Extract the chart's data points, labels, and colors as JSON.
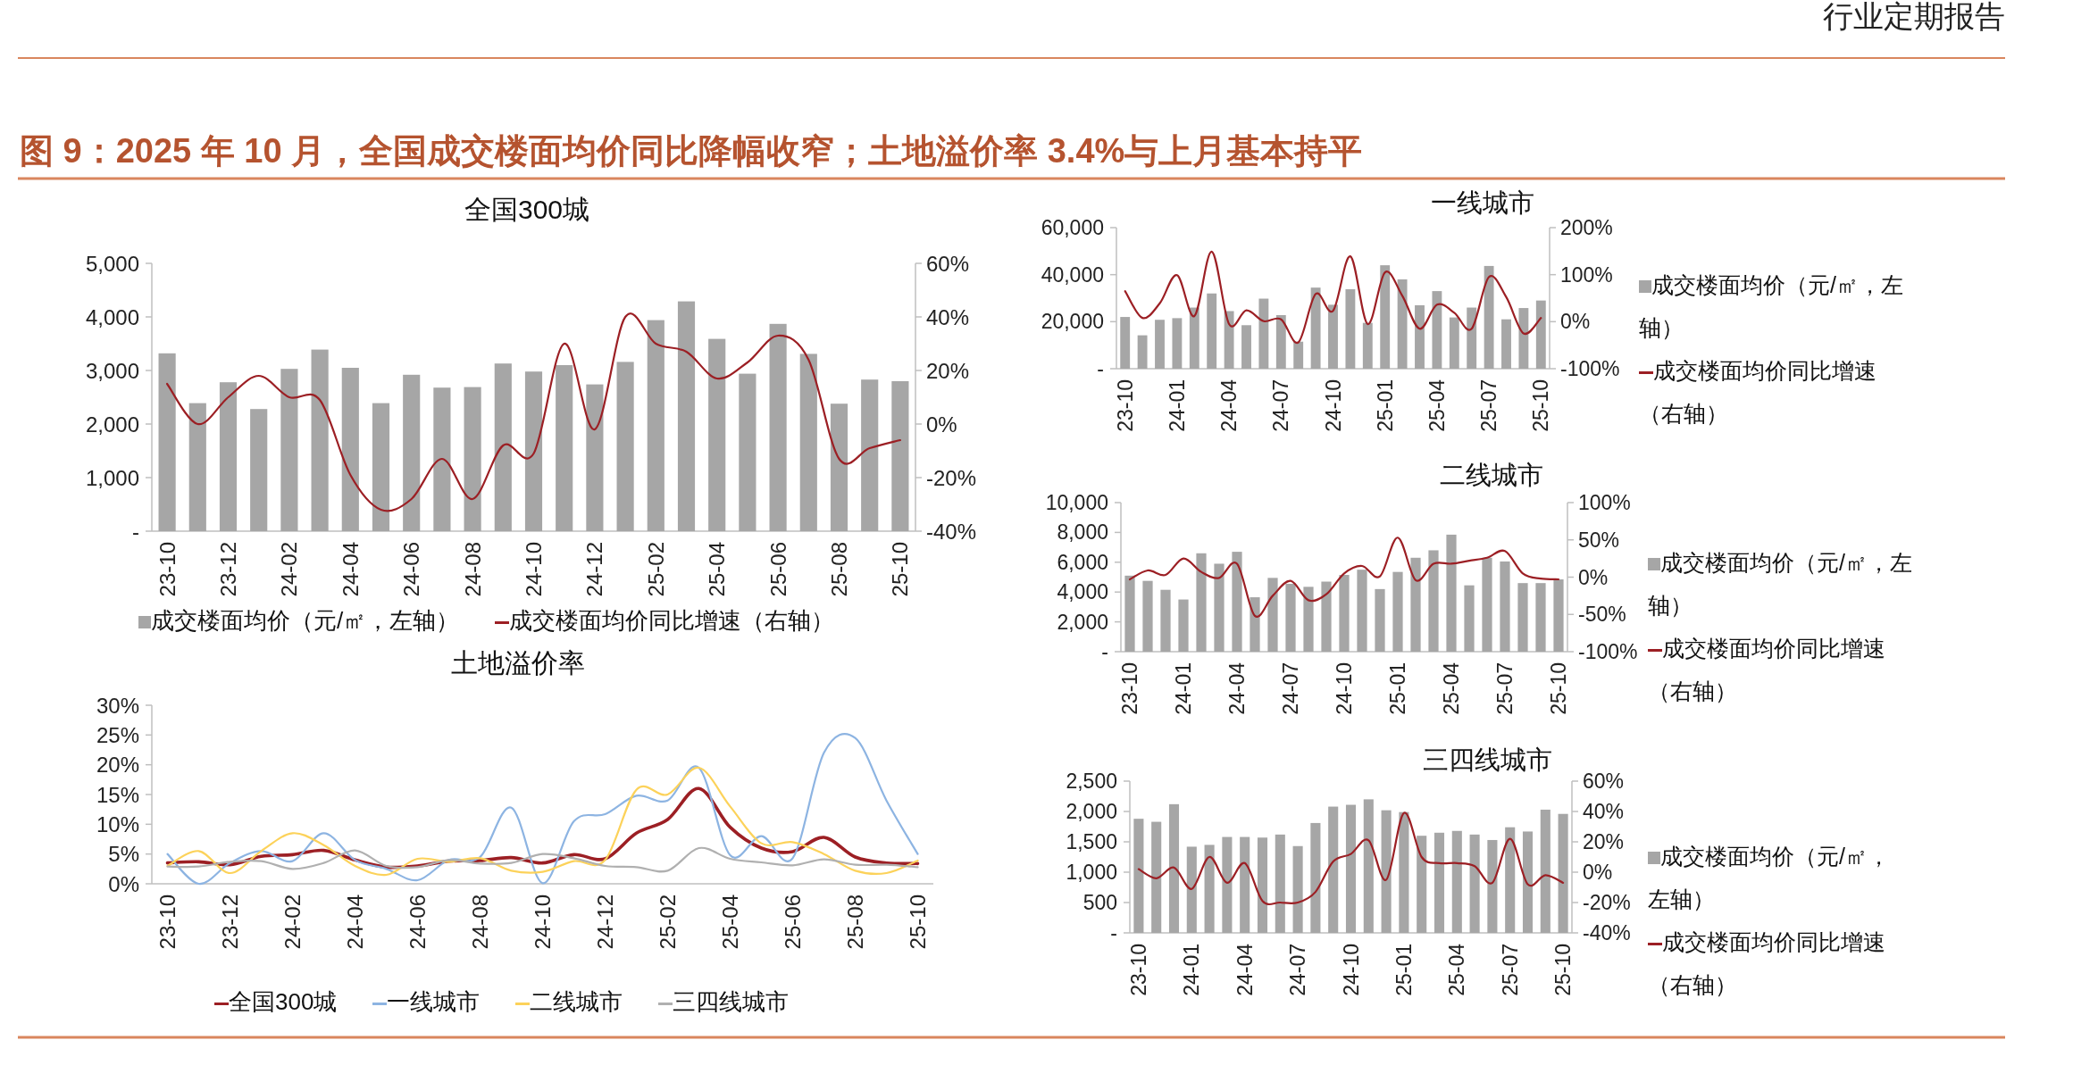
{
  "chart_data": [
    {
      "type": "bar",
      "title": "全国300城",
      "annotations": [
        "行业定期报告",
        "图 9：2025 年 10 月，全国成交楼面均价同比降幅收窄；土地溢价率 3.4%与上月基本持平"
      ],
      "categories": [
        "23-10",
        null,
        "23-12",
        null,
        "24-02",
        null,
        "24-04",
        null,
        "24-06",
        null,
        "24-08",
        null,
        "24-10",
        null,
        "24-12",
        null,
        "25-02",
        null,
        "25-04",
        null,
        "25-06",
        null,
        "25-08",
        null,
        "25-10"
      ],
      "series": [
        {
          "name": "成交楼面均价（元/㎡，左轴）",
          "color": "#a6a6a6",
          "values": [
            3320,
            2390,
            2780,
            2280,
            3030,
            3390,
            3050,
            2390,
            2920,
            2680,
            2690,
            3130,
            2980,
            3100,
            2740,
            3160,
            3940,
            4290,
            3590,
            2940,
            3870,
            3310,
            2380,
            2830,
            2800
          ]
        },
        {
          "name": "成交楼面均价同比增速（右轴）",
          "type": "line",
          "axis": "y2",
          "color": "#9c1f24",
          "values": [
            15,
            0,
            10,
            18,
            10,
            9,
            -19,
            -32,
            -28,
            -13,
            -28,
            -8,
            -11,
            30,
            -2,
            40,
            30,
            27,
            17,
            23,
            33,
            24,
            -13,
            -9,
            -6
          ]
        }
      ],
      "ylim": [
        0,
        5000
      ],
      "yticks": [
        {
          "value": 0,
          "label": "-"
        },
        {
          "value": 1000,
          "label": "1,000"
        },
        {
          "value": 2000,
          "label": "2,000"
        },
        {
          "value": 3000,
          "label": "3,000"
        },
        {
          "value": 4000,
          "label": "4,000"
        },
        {
          "value": 5000,
          "label": "5,000"
        }
      ],
      "y2lim": [
        -40,
        60
      ],
      "y2ticks": [
        {
          "value": -40,
          "label": "-40%"
        },
        {
          "value": -20,
          "label": "-20%"
        },
        {
          "value": 0,
          "label": "0%"
        },
        {
          "value": 20,
          "label": "20%"
        },
        {
          "value": 40,
          "label": "40%"
        },
        {
          "value": 60,
          "label": "60%"
        }
      ],
      "legend": "bottom",
      "grid": false
    },
    {
      "type": "line",
      "title": "土地溢价率",
      "categories": [
        "23-10",
        null,
        "23-12",
        null,
        "24-02",
        null,
        "24-04",
        null,
        "24-06",
        null,
        "24-08",
        null,
        "24-10",
        null,
        "24-12",
        null,
        "25-02",
        null,
        "25-04",
        null,
        "25-06",
        null,
        "25-08",
        null,
        "25-10"
      ],
      "series": [
        {
          "name": "全国300城",
          "color": "#9c1f24",
          "values": [
            3.5,
            3.7,
            3.2,
            4.6,
            4.9,
            5.6,
            4,
            2.8,
            3,
            3.8,
            3.9,
            4.4,
            3.5,
            4.9,
            4.2,
            8.5,
            10.8,
            16,
            9.5,
            6,
            5.4,
            7.8,
            4.5,
            3.5,
            3.4
          ]
        },
        {
          "name": "一线城市",
          "color": "#8db4e2",
          "values": [
            5,
            0,
            3.5,
            5.5,
            3.8,
            8.5,
            4,
            2.5,
            0.6,
            4,
            4.5,
            12.8,
            0.1,
            10.5,
            11.7,
            14.8,
            14,
            19.5,
            4.8,
            8,
            4.3,
            22,
            24.5,
            14,
            5
          ]
        },
        {
          "name": "二线城市",
          "color": "#fcd25a",
          "values": [
            3,
            5.5,
            1.8,
            5.5,
            8.5,
            6.5,
            3,
            1.5,
            4.2,
            3.7,
            4.3,
            2.2,
            2,
            3.8,
            4,
            15.8,
            15,
            19.5,
            13,
            6.8,
            7,
            5,
            2.2,
            1.8,
            3.9
          ]
        },
        {
          "name": "三四线城市",
          "color": "#b0b0b0",
          "values": [
            2.9,
            2.9,
            3.7,
            3.8,
            2.5,
            3.5,
            5.6,
            3,
            2.8,
            4,
            3.4,
            3.5,
            5,
            4.3,
            3,
            2.8,
            2.2,
            6,
            4.2,
            3.6,
            3.1,
            4.1,
            3.2,
            3.2,
            2.8
          ]
        }
      ],
      "ylim": [
        0,
        30
      ],
      "yticks": [
        {
          "value": 0,
          "label": "0%"
        },
        {
          "value": 5,
          "label": "5%"
        },
        {
          "value": 10,
          "label": "10%"
        },
        {
          "value": 15,
          "label": "15%"
        },
        {
          "value": 20,
          "label": "20%"
        },
        {
          "value": 25,
          "label": "25%"
        },
        {
          "value": 30,
          "label": "30%"
        }
      ],
      "legend": "bottom",
      "grid": false
    },
    {
      "type": "bar",
      "title": "一线城市",
      "categories": [
        "23-10",
        null,
        null,
        "24-01",
        null,
        null,
        "24-04",
        null,
        null,
        "24-07",
        null,
        null,
        "24-10",
        null,
        null,
        "25-01",
        null,
        null,
        "25-04",
        null,
        null,
        "25-07",
        null,
        null,
        "25-10"
      ],
      "series": [
        {
          "name": "成交楼面均价（元/㎡，左轴）",
          "color": "#a6a6a6",
          "values": [
            22000,
            14200,
            20800,
            21500,
            26000,
            32000,
            24500,
            18500,
            29800,
            22800,
            11500,
            34500,
            27200,
            33800,
            19500,
            44000,
            38000,
            27000,
            33000,
            21800,
            26000,
            43700,
            21000,
            25800,
            29000
          ]
        },
        {
          "name": "成交楼面均价同比增速（右轴）",
          "type": "line",
          "axis": "y2",
          "color": "#9c1f24",
          "values": [
            65,
            8,
            39,
            99,
            12,
            149,
            -5,
            24,
            1,
            5,
            -44,
            59,
            23,
            139,
            -5,
            105,
            55,
            -15,
            36,
            19,
            -15,
            95,
            52,
            -25,
            8
          ]
        }
      ],
      "ylim": [
        0,
        60000
      ],
      "yticks": [
        {
          "value": 0,
          "label": "-"
        },
        {
          "value": 20000,
          "label": "20,000"
        },
        {
          "value": 40000,
          "label": "40,000"
        },
        {
          "value": 60000,
          "label": "60,000"
        }
      ],
      "y2lim": [
        -100,
        200
      ],
      "y2ticks": [
        {
          "value": -100,
          "label": "-100%"
        },
        {
          "value": 0,
          "label": "0%"
        },
        {
          "value": 100,
          "label": "100%"
        },
        {
          "value": 200,
          "label": "200%"
        }
      ],
      "legend": "right",
      "grid": false
    },
    {
      "type": "bar",
      "title": "二线城市",
      "categories": [
        "23-10",
        null,
        null,
        "24-01",
        null,
        null,
        "24-04",
        null,
        null,
        "24-07",
        null,
        null,
        "24-10",
        null,
        null,
        "25-01",
        null,
        null,
        "25-04",
        null,
        null,
        "25-07",
        null,
        null,
        "25-10"
      ],
      "series": [
        {
          "name": "成交楼面均价（元/㎡，左轴）",
          "color": "#a6a6a6",
          "values": [
            5100,
            4750,
            4150,
            3500,
            6600,
            5900,
            6700,
            3650,
            4950,
            4550,
            4350,
            4700,
            5150,
            5500,
            4200,
            5350,
            6300,
            6800,
            7850,
            4450,
            6300,
            6050,
            4600,
            4600,
            4850
          ]
        },
        {
          "name": "成交楼面均价同比增速（右轴）",
          "type": "line",
          "axis": "y2",
          "color": "#9c1f24",
          "values": [
            -3,
            9,
            3,
            25,
            7,
            -1,
            18,
            -52,
            -25,
            -5,
            -31,
            -23,
            5,
            15,
            1,
            53,
            -4,
            18,
            18,
            22,
            26,
            35,
            5,
            -2,
            -3
          ]
        }
      ],
      "ylim": [
        0,
        10000
      ],
      "yticks": [
        {
          "value": 0,
          "label": "-"
        },
        {
          "value": 2000,
          "label": "2,000"
        },
        {
          "value": 4000,
          "label": "4,000"
        },
        {
          "value": 6000,
          "label": "6,000"
        },
        {
          "value": 8000,
          "label": "8,000"
        },
        {
          "value": 10000,
          "label": "10,000"
        }
      ],
      "y2lim": [
        -100,
        100
      ],
      "y2ticks": [
        {
          "value": -100,
          "label": "-100%"
        },
        {
          "value": -50,
          "label": "-50%"
        },
        {
          "value": 0,
          "label": "0%"
        },
        {
          "value": 50,
          "label": "50%"
        },
        {
          "value": 100,
          "label": "100%"
        }
      ],
      "legend": "right",
      "grid": false
    },
    {
      "type": "bar",
      "title": "三四线城市",
      "categories": [
        "23-10",
        null,
        null,
        "24-01",
        null,
        null,
        "24-04",
        null,
        null,
        "24-07",
        null,
        null,
        "24-10",
        null,
        null,
        "25-01",
        null,
        null,
        "25-04",
        null,
        null,
        "25-07",
        null,
        null,
        "25-10"
      ],
      "series": [
        {
          "name": "成交楼面均价（元/㎡，左轴）",
          "color": "#a6a6a6",
          "values": [
            1880,
            1830,
            2120,
            1420,
            1450,
            1580,
            1580,
            1570,
            1620,
            1430,
            1810,
            2080,
            2110,
            2200,
            2020,
            1990,
            1600,
            1650,
            1680,
            1620,
            1530,
            1740,
            1670,
            2030,
            1960
          ]
        },
        {
          "name": "成交楼面均价同比增速（右轴）",
          "type": "line",
          "axis": "y2",
          "color": "#9c1f24",
          "values": [
            2,
            -4,
            3,
            -11,
            10,
            -7,
            6,
            -19,
            -20,
            -20,
            -13,
            7,
            12,
            21,
            -5,
            39,
            10,
            6,
            6,
            4,
            -7,
            22,
            -8,
            -2,
            -7
          ]
        }
      ],
      "ylim": [
        0,
        2500
      ],
      "yticks": [
        {
          "value": 0,
          "label": "-"
        },
        {
          "value": 500,
          "label": "500"
        },
        {
          "value": 1000,
          "label": "1,000"
        },
        {
          "value": 1500,
          "label": "1,500"
        },
        {
          "value": 2000,
          "label": "2,000"
        },
        {
          "value": 2500,
          "label": "2,500"
        }
      ],
      "y2lim": [
        -40,
        60
      ],
      "y2ticks": [
        {
          "value": -40,
          "label": "-40%"
        },
        {
          "value": -20,
          "label": "-20%"
        },
        {
          "value": 0,
          "label": "0%"
        },
        {
          "value": 20,
          "label": "20%"
        },
        {
          "value": 40,
          "label": "40%"
        },
        {
          "value": 60,
          "label": "60%"
        }
      ],
      "legend": "right",
      "grid": false
    }
  ]
}
